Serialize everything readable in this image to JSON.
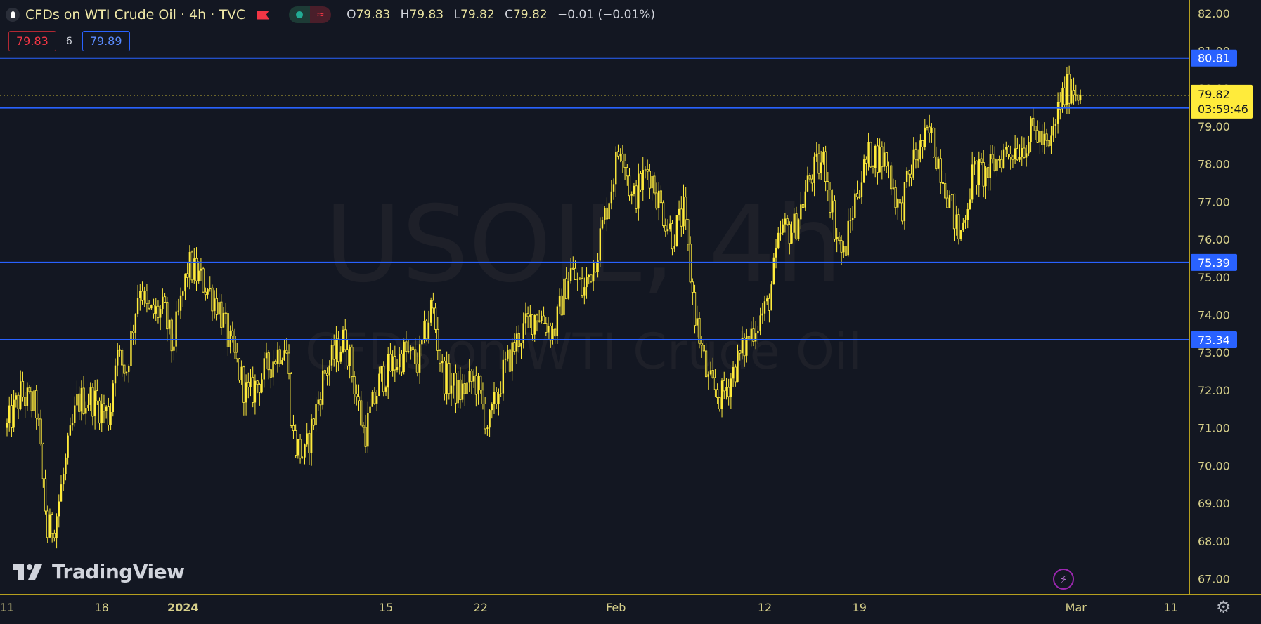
{
  "header": {
    "title": "CFDs on WTI Crude Oil · 4h · TVC",
    "open_label": "O",
    "open": "79.83",
    "high_label": "H",
    "high": "79.83",
    "low_label": "L",
    "low": "79.82",
    "close_label": "C",
    "close": "79.82",
    "change": "−0.01 (−0.01%)",
    "wave_icon": "≈"
  },
  "bidask": {
    "bid": "79.83",
    "spread": "6",
    "ask": "79.89"
  },
  "brand": {
    "name": "TradingView"
  },
  "watermark": {
    "symbol": "USOIL, 4h",
    "description": "CFDs on WTI Crude Oil"
  },
  "price_tag": {
    "price": "79.82",
    "countdown": "03:59:46"
  },
  "colors": {
    "background": "#131722",
    "candle": "#ffeb3b",
    "level_line": "#2962ff",
    "last_price": "#ffeb3b"
  },
  "chart_data": {
    "type": "candlestick",
    "symbol": "USOIL",
    "interval": "4h",
    "y_axis": {
      "min": 66.6,
      "max": 82.35,
      "ticks": [
        "82.00",
        "81.00",
        "80.00",
        "79.00",
        "78.00",
        "77.00",
        "76.00",
        "75.00",
        "74.00",
        "73.00",
        "72.00",
        "71.00",
        "70.00",
        "69.00",
        "68.00",
        "67.00"
      ]
    },
    "x_axis": {
      "min": 11.0,
      "max": 11.28,
      "ticks": [
        {
          "label": "11",
          "t": 0
        },
        {
          "label": "18",
          "t": 7
        },
        {
          "label": "2024",
          "t": 13
        },
        {
          "label": "15",
          "t": 28
        },
        {
          "label": "22",
          "t": 35
        },
        {
          "label": "Feb",
          "t": 45
        },
        {
          "label": "12",
          "t": 56
        },
        {
          "label": "19",
          "t": 63
        },
        {
          "label": "Mar",
          "t": 79
        },
        {
          "label": "11",
          "t": 86
        }
      ]
    },
    "levels": [
      "80.81",
      "79.49",
      "75.39",
      "73.34"
    ],
    "last_price": 79.82,
    "path": [
      [
        0,
        71.0
      ],
      [
        1.0,
        71.9
      ],
      [
        2.2,
        71.5
      ],
      [
        3.0,
        68.2
      ],
      [
        3.6,
        68.6
      ],
      [
        4.4,
        70.2
      ],
      [
        5.2,
        71.7
      ],
      [
        6.2,
        71.8
      ],
      [
        7.6,
        71.3
      ],
      [
        8.0,
        73.0
      ],
      [
        8.8,
        72.5
      ],
      [
        9.8,
        74.9
      ],
      [
        10.4,
        74.0
      ],
      [
        11.6,
        74.1
      ],
      [
        12.2,
        73.1
      ],
      [
        13.4,
        75.3
      ],
      [
        14.4,
        74.9
      ],
      [
        15.6,
        74.3
      ],
      [
        16.4,
        73.3
      ],
      [
        17.8,
        71.8
      ],
      [
        19.6,
        72.8
      ],
      [
        20.6,
        73.3
      ],
      [
        21.2,
        70.6
      ],
      [
        22.0,
        70.2
      ],
      [
        23.4,
        72.4
      ],
      [
        25.0,
        73.4
      ],
      [
        26.4,
        70.8
      ],
      [
        27.6,
        72.3
      ],
      [
        29.4,
        73.0
      ],
      [
        30.4,
        72.7
      ],
      [
        31.4,
        74.3
      ],
      [
        32.2,
        72.4
      ],
      [
        33.4,
        71.9
      ],
      [
        34.6,
        72.3
      ],
      [
        35.6,
        71.0
      ],
      [
        36.6,
        72.4
      ],
      [
        37.8,
        73.4
      ],
      [
        39.2,
        74.1
      ],
      [
        40.4,
        73.5
      ],
      [
        41.6,
        75.2
      ],
      [
        42.6,
        74.6
      ],
      [
        43.6,
        75.7
      ],
      [
        44.4,
        77.0
      ],
      [
        45.4,
        78.7
      ],
      [
        46.2,
        77.0
      ],
      [
        47.4,
        77.9
      ],
      [
        48.4,
        76.8
      ],
      [
        49.2,
        76.1
      ],
      [
        50.0,
        76.7
      ],
      [
        50.8,
        74.1
      ],
      [
        51.8,
        72.2
      ],
      [
        52.8,
        71.8
      ],
      [
        53.8,
        72.6
      ],
      [
        55.2,
        73.7
      ],
      [
        56.2,
        74.2
      ],
      [
        57.2,
        76.2
      ],
      [
        58.2,
        76.3
      ],
      [
        59.4,
        77.7
      ],
      [
        60.4,
        78.1
      ],
      [
        61.2,
        76.3
      ],
      [
        61.8,
        75.5
      ],
      [
        62.8,
        77.3
      ],
      [
        63.8,
        78.3
      ],
      [
        65.0,
        78.1
      ],
      [
        66.0,
        76.7
      ],
      [
        67.0,
        78.1
      ],
      [
        68.2,
        78.8
      ],
      [
        69.2,
        77.7
      ],
      [
        70.4,
        76.0
      ],
      [
        71.4,
        77.8
      ],
      [
        72.4,
        77.7
      ],
      [
        73.6,
        78.3
      ],
      [
        75.0,
        78.5
      ],
      [
        76.0,
        78.9
      ],
      [
        77.0,
        78.3
      ],
      [
        77.8,
        79.6
      ],
      [
        78.6,
        80.1
      ],
      [
        79.4,
        79.82
      ]
    ]
  }
}
